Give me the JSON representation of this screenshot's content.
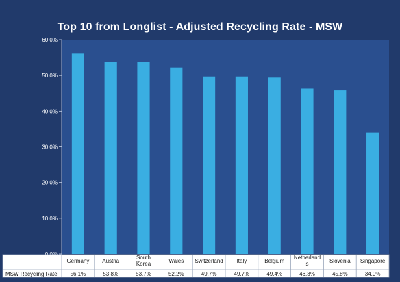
{
  "chart_data": {
    "type": "bar",
    "title": "Top 10 from Longlist - Adjusted Recycling Rate - MSW",
    "categories": [
      [
        "Germany"
      ],
      [
        "Austria"
      ],
      [
        "South",
        "Korea"
      ],
      [
        "Wales"
      ],
      [
        "Switzerland"
      ],
      [
        "Italy"
      ],
      [
        "Belgium"
      ],
      [
        "Netherland",
        "s"
      ],
      [
        "Slovenia"
      ],
      [
        "Singapore"
      ]
    ],
    "series": [
      {
        "name": "MSW Recycling Rate",
        "values": [
          56.1,
          53.8,
          53.7,
          52.2,
          49.7,
          49.7,
          49.4,
          46.3,
          45.8,
          34.0
        ],
        "labels": [
          "56.1%",
          "53.8%",
          "53.7%",
          "52.2%",
          "49.7%",
          "49.7%",
          "49.4%",
          "46.3%",
          "45.8%",
          "34.0%"
        ]
      }
    ],
    "ylim": [
      0,
      60
    ],
    "yticks": [
      "0.0%",
      "10.0%",
      "20.0%",
      "30.0%",
      "40.0%",
      "50.0%",
      "60.0%"
    ],
    "grid": false,
    "legend": "data-table-row",
    "colors": {
      "background": "#213a6b",
      "bar": "#3aaee2",
      "plot_area": "#2a4f8f",
      "table": "#ffffff"
    }
  }
}
